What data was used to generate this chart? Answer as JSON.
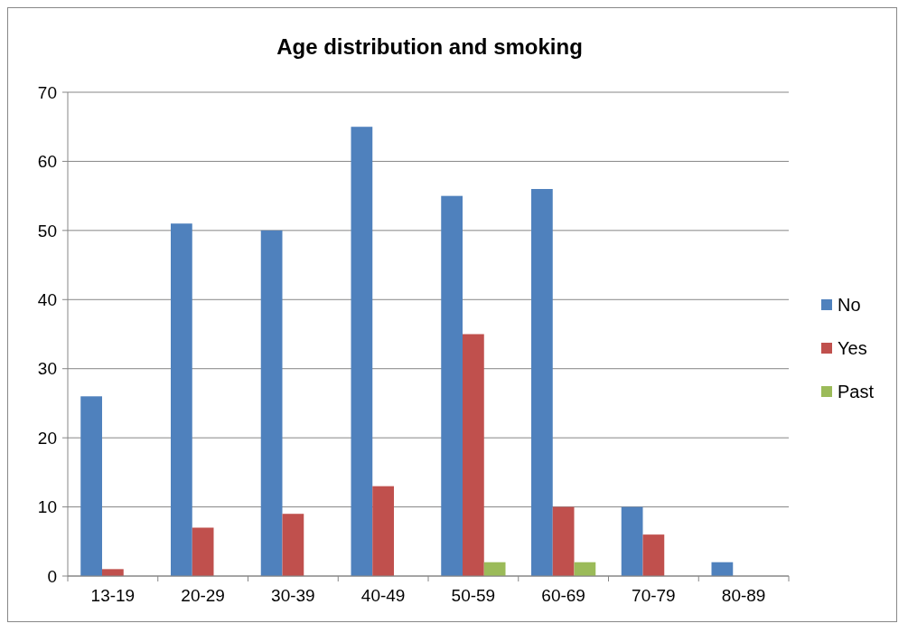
{
  "chart_data": {
    "type": "bar",
    "title": "Age distribution and smoking",
    "categories": [
      "13-19",
      "20-29",
      "30-39",
      "40-49",
      "50-59",
      "60-69",
      "70-79",
      "80-89"
    ],
    "series": [
      {
        "name": "No",
        "color": "#4f81bd",
        "values": [
          26,
          51,
          50,
          65,
          55,
          56,
          10,
          2
        ]
      },
      {
        "name": "Yes",
        "color": "#c0504d",
        "values": [
          1,
          7,
          9,
          13,
          35,
          10,
          6,
          0
        ]
      },
      {
        "name": "Past",
        "color": "#9bbb59",
        "values": [
          0,
          0,
          0,
          0,
          2,
          2,
          0,
          0
        ]
      }
    ],
    "ylim": [
      0,
      70
    ],
    "yticks": [
      0,
      10,
      20,
      30,
      40,
      50,
      60,
      70
    ],
    "grid": "y",
    "legend": "right"
  }
}
